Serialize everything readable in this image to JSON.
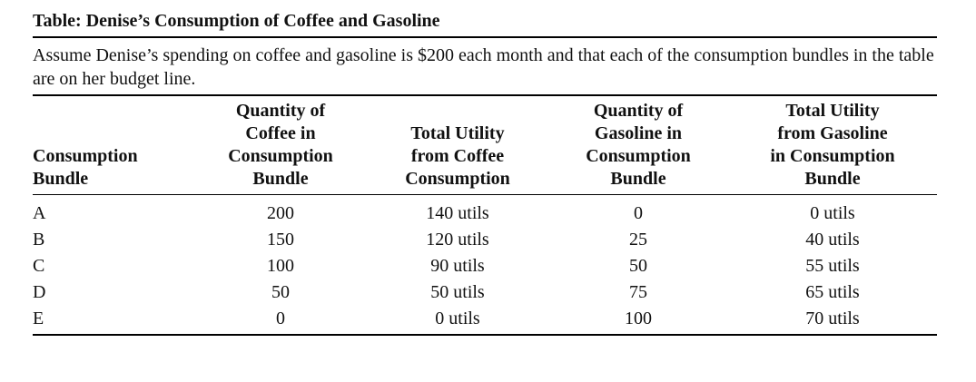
{
  "title": "Table: Denise’s Consumption of Coffee and Gasoline",
  "note": "Assume Denise’s spending on coffee and gasoline is $200 each month and that each of the consumption bundles in the table are on her budget line.",
  "columns": [
    [
      "Consumption",
      "Bundle"
    ],
    [
      "Quantity of",
      "Coffee in",
      "Consumption",
      "Bundle"
    ],
    [
      "Total Utility",
      "from Coffee",
      "Consumption"
    ],
    [
      "Quantity of",
      "Gasoline in",
      "Consumption",
      "Bundle"
    ],
    [
      "Total Utility",
      "from Gasoline",
      "in Consumption",
      "Bundle"
    ]
  ],
  "rows": [
    [
      "A",
      "200",
      "140 utils",
      "0",
      "0 utils"
    ],
    [
      "B",
      "150",
      "120 utils",
      "25",
      "40 utils"
    ],
    [
      "C",
      "100",
      "90 utils",
      "50",
      "55 utils"
    ],
    [
      "D",
      "50",
      "50 utils",
      "75",
      "65 utils"
    ],
    [
      "E",
      "0",
      "0 utils",
      "100",
      "70 utils"
    ]
  ]
}
